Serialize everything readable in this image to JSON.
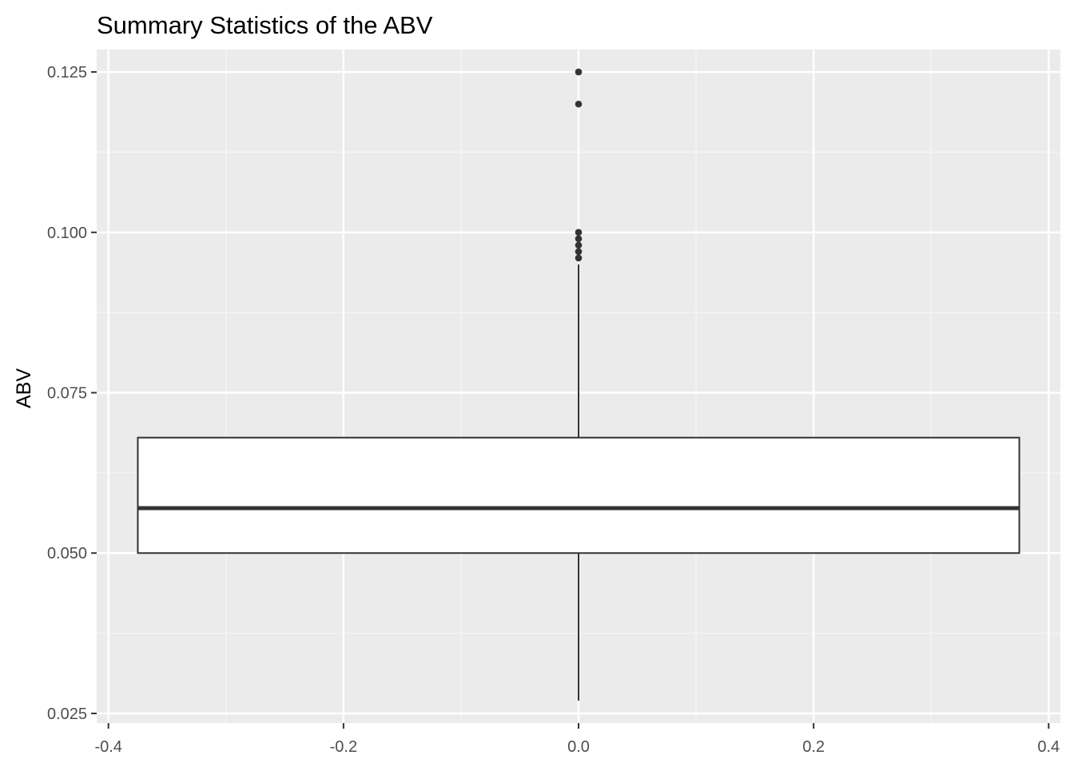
{
  "chart_data": {
    "type": "boxplot",
    "title": "Summary Statistics of the ABV",
    "xlabel": "",
    "ylabel": "ABV",
    "xlim": [
      -0.41,
      0.41
    ],
    "ylim": [
      0.0235,
      0.1285
    ],
    "x_ticks": [
      -0.4,
      -0.2,
      0.0,
      0.2,
      0.4
    ],
    "x_tick_labels": [
      "-0.4",
      "-0.2",
      "0.0",
      "0.2",
      "0.4"
    ],
    "x_minor_ticks": [
      -0.3,
      -0.1,
      0.1,
      0.3
    ],
    "y_ticks": [
      0.025,
      0.05,
      0.075,
      0.1,
      0.125
    ],
    "y_tick_labels": [
      "0.025",
      "0.050",
      "0.075",
      "0.100",
      "0.125"
    ],
    "y_minor_ticks": [
      0.0375,
      0.0625,
      0.0875,
      0.1125
    ],
    "box": {
      "x_center": 0.0,
      "x_min": -0.375,
      "x_max": 0.375,
      "whisker_low": 0.027,
      "q1": 0.05,
      "median": 0.057,
      "q3": 0.068,
      "whisker_high": 0.095
    },
    "outliers": [
      0.096,
      0.097,
      0.098,
      0.099,
      0.1,
      0.12,
      0.125
    ],
    "grid": true,
    "colors": {
      "panel_bg": "#EBEBEB",
      "grid_major": "#FFFFFF",
      "grid_minor": "#F5F5F5",
      "box_fill": "#FFFFFF",
      "box_stroke": "#333333",
      "outlier": "#333333",
      "tick_text": "#4D4D4D",
      "title_text": "#000000"
    }
  }
}
